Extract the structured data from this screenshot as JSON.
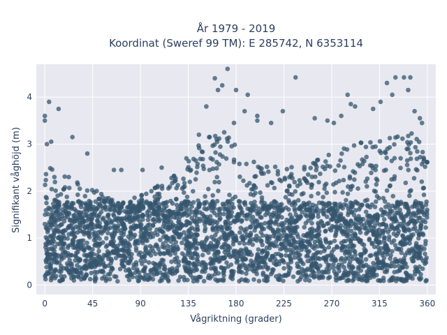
{
  "chart_data": {
    "type": "scatter",
    "title_line1": "År 1979 - 2019",
    "title_line2": "Koordinat (Sweref 99 TM): E 285742, N 6353114",
    "xlabel": "Vågriktning (grader)",
    "ylabel": "Signifikant våghöjd (m)",
    "xlim": [
      -8,
      368
    ],
    "ylim": [
      -0.2,
      4.7
    ],
    "xticks": [
      0,
      45,
      90,
      135,
      180,
      225,
      270,
      315,
      360
    ],
    "yticks": [
      0,
      1,
      2,
      3,
      4
    ],
    "grid": true,
    "legend": "none",
    "colors": {
      "marker": "#34566d",
      "plot_bg": "#e8e8f0",
      "grid": "#ffffff"
    },
    "envelope": {
      "x": [
        0,
        15,
        30,
        45,
        60,
        75,
        90,
        105,
        120,
        135,
        150,
        160,
        170,
        180,
        195,
        210,
        225,
        240,
        255,
        270,
        285,
        300,
        315,
        330,
        345,
        360
      ],
      "y": [
        2.6,
        2.4,
        2.2,
        2.05,
        1.9,
        1.85,
        1.9,
        2.1,
        2.4,
        2.8,
        3.15,
        3.35,
        3.3,
        2.95,
        2.65,
        2.55,
        2.5,
        2.55,
        2.65,
        2.8,
        2.95,
        3.05,
        3.1,
        3.2,
        3.3,
        2.9
      ]
    },
    "outliers": [
      {
        "x": 0,
        "y": 3.6
      },
      {
        "x": 0,
        "y": 3.5
      },
      {
        "x": 4,
        "y": 3.9
      },
      {
        "x": 13,
        "y": 3.75
      },
      {
        "x": 2,
        "y": 3.0
      },
      {
        "x": 6,
        "y": 3.05
      },
      {
        "x": 26,
        "y": 3.15
      },
      {
        "x": 40,
        "y": 2.8
      },
      {
        "x": 65,
        "y": 2.45
      },
      {
        "x": 72,
        "y": 2.45
      },
      {
        "x": 92,
        "y": 2.45
      },
      {
        "x": 110,
        "y": 2.5
      },
      {
        "x": 145,
        "y": 3.2
      },
      {
        "x": 152,
        "y": 3.8
      },
      {
        "x": 160,
        "y": 4.4
      },
      {
        "x": 163,
        "y": 4.15
      },
      {
        "x": 167,
        "y": 4.25
      },
      {
        "x": 172,
        "y": 4.6
      },
      {
        "x": 178,
        "y": 3.45
      },
      {
        "x": 180,
        "y": 4.15
      },
      {
        "x": 188,
        "y": 3.7
      },
      {
        "x": 191,
        "y": 4.05
      },
      {
        "x": 200,
        "y": 3.6
      },
      {
        "x": 200,
        "y": 3.5
      },
      {
        "x": 213,
        "y": 3.45
      },
      {
        "x": 224,
        "y": 3.7
      },
      {
        "x": 236,
        "y": 4.42
      },
      {
        "x": 254,
        "y": 3.55
      },
      {
        "x": 266,
        "y": 3.5
      },
      {
        "x": 272,
        "y": 3.45
      },
      {
        "x": 279,
        "y": 3.6
      },
      {
        "x": 285,
        "y": 4.05
      },
      {
        "x": 288,
        "y": 3.85
      },
      {
        "x": 292,
        "y": 3.8
      },
      {
        "x": 309,
        "y": 3.75
      },
      {
        "x": 316,
        "y": 3.9
      },
      {
        "x": 322,
        "y": 4.3
      },
      {
        "x": 327,
        "y": 4.05
      },
      {
        "x": 330,
        "y": 4.42
      },
      {
        "x": 338,
        "y": 4.42
      },
      {
        "x": 342,
        "y": 4.15
      },
      {
        "x": 344,
        "y": 4.42
      },
      {
        "x": 348,
        "y": 3.7
      },
      {
        "x": 353,
        "y": 3.55
      },
      {
        "x": 355,
        "y": 3.45
      }
    ]
  }
}
